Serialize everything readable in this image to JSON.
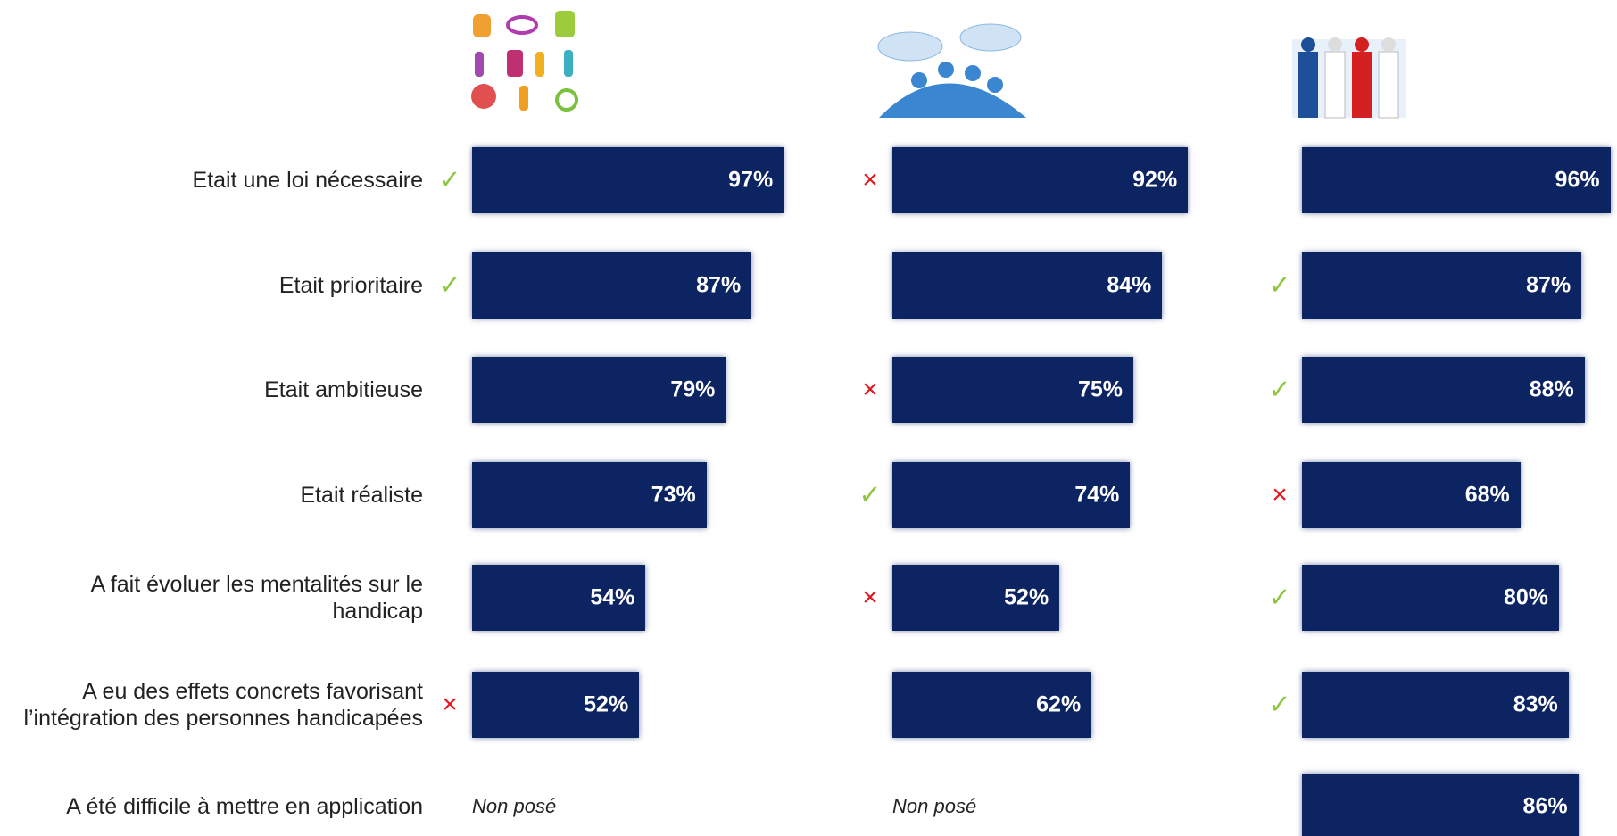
{
  "chart_data": {
    "type": "bar",
    "orientation": "horizontal",
    "categories": [
      "Etait une loi nécessaire",
      "Etait prioritaire",
      "Etait ambitieuse",
      "Etait réaliste",
      "A fait évoluer les mentalités sur le handicap",
      "A eu des effets concrets favorisant l’intégration des personnes handicapées",
      "A été difficile à mettre en application"
    ],
    "xlim": [
      0,
      100
    ],
    "indicator_colors": {
      "✓": "#8dc63f",
      "×": "#e3141b"
    },
    "series": [
      {
        "color": "#0d2463",
        "values": [
          97,
          87,
          79,
          73,
          54,
          52,
          null
        ],
        "value_labels": [
          "97%",
          "87%",
          "79%",
          "73%",
          "54%",
          "52%",
          "Non posé"
        ],
        "indicators": [
          "✓",
          "✓",
          null,
          null,
          null,
          "×",
          null
        ]
      },
      {
        "color": "#0d2463",
        "values": [
          92,
          84,
          75,
          74,
          52,
          62,
          null
        ],
        "value_labels": [
          "92%",
          "84%",
          "75%",
          "74%",
          "52%",
          "62%",
          "Non posé"
        ],
        "indicators": [
          "×",
          null,
          "×",
          "✓",
          "×",
          null,
          null
        ]
      },
      {
        "color": "#0d2463",
        "values": [
          96,
          87,
          88,
          68,
          80,
          83,
          86
        ],
        "value_labels": [
          "96%",
          "87%",
          "88%",
          "68%",
          "80%",
          "83%",
          "86%"
        ],
        "indicators": [
          null,
          "✓",
          "✓",
          "×",
          "✓",
          "✓",
          null
        ]
      }
    ]
  }
}
